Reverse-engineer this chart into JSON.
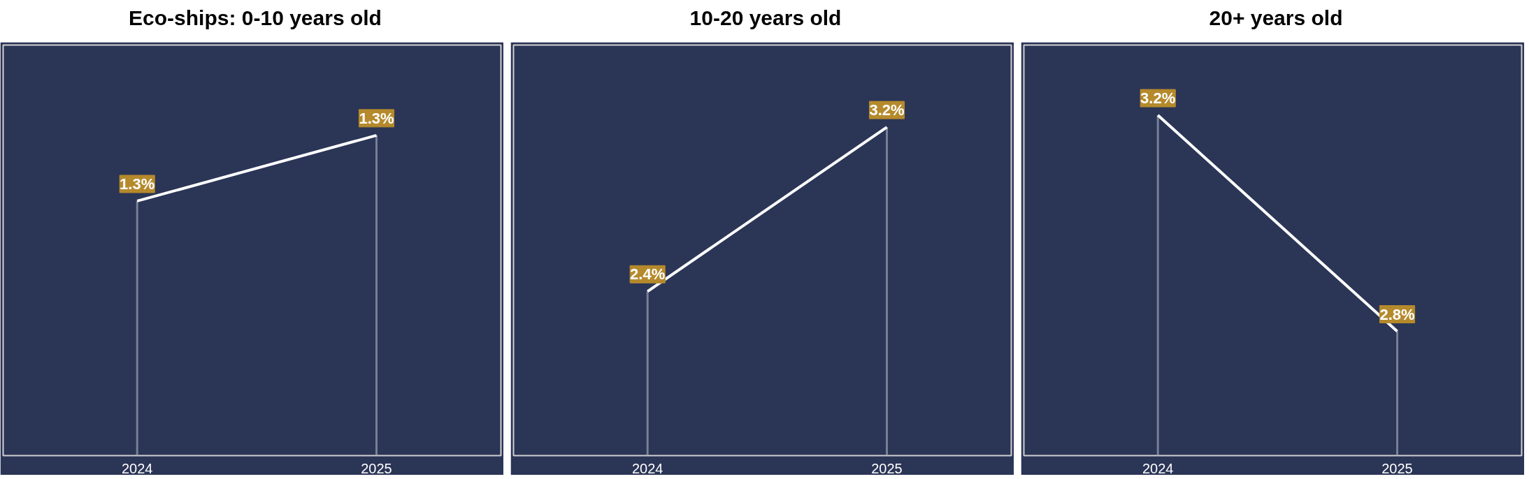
{
  "chart_data": [
    {
      "type": "line",
      "title": "Eco-ships: 0-10 years old",
      "categories": [
        "2024",
        "2025"
      ],
      "values": [
        1.26,
        1.34
      ],
      "value_labels": [
        "1.3%",
        "1.3%"
      ],
      "color": "#ffffff",
      "ylim": [
        0.95,
        1.45
      ],
      "tick_labels": "x"
    },
    {
      "type": "line",
      "title": "10-20 years old",
      "categories": [
        "2024",
        "2025"
      ],
      "values": [
        2.4,
        3.2
      ],
      "value_labels": [
        "2.4%",
        "3.2%"
      ],
      "color": "#ffffff",
      "ylim": [
        1.6,
        3.6
      ],
      "tick_labels": "x"
    },
    {
      "type": "line",
      "title": "20+ years old",
      "categories": [
        "2024",
        "2025"
      ],
      "values": [
        3.2,
        2.8
      ],
      "value_labels": [
        "3.2%",
        "2.8%"
      ],
      "color": "#ffffff",
      "ylim": [
        2.57,
        3.33
      ],
      "tick_labels": "x"
    }
  ]
}
